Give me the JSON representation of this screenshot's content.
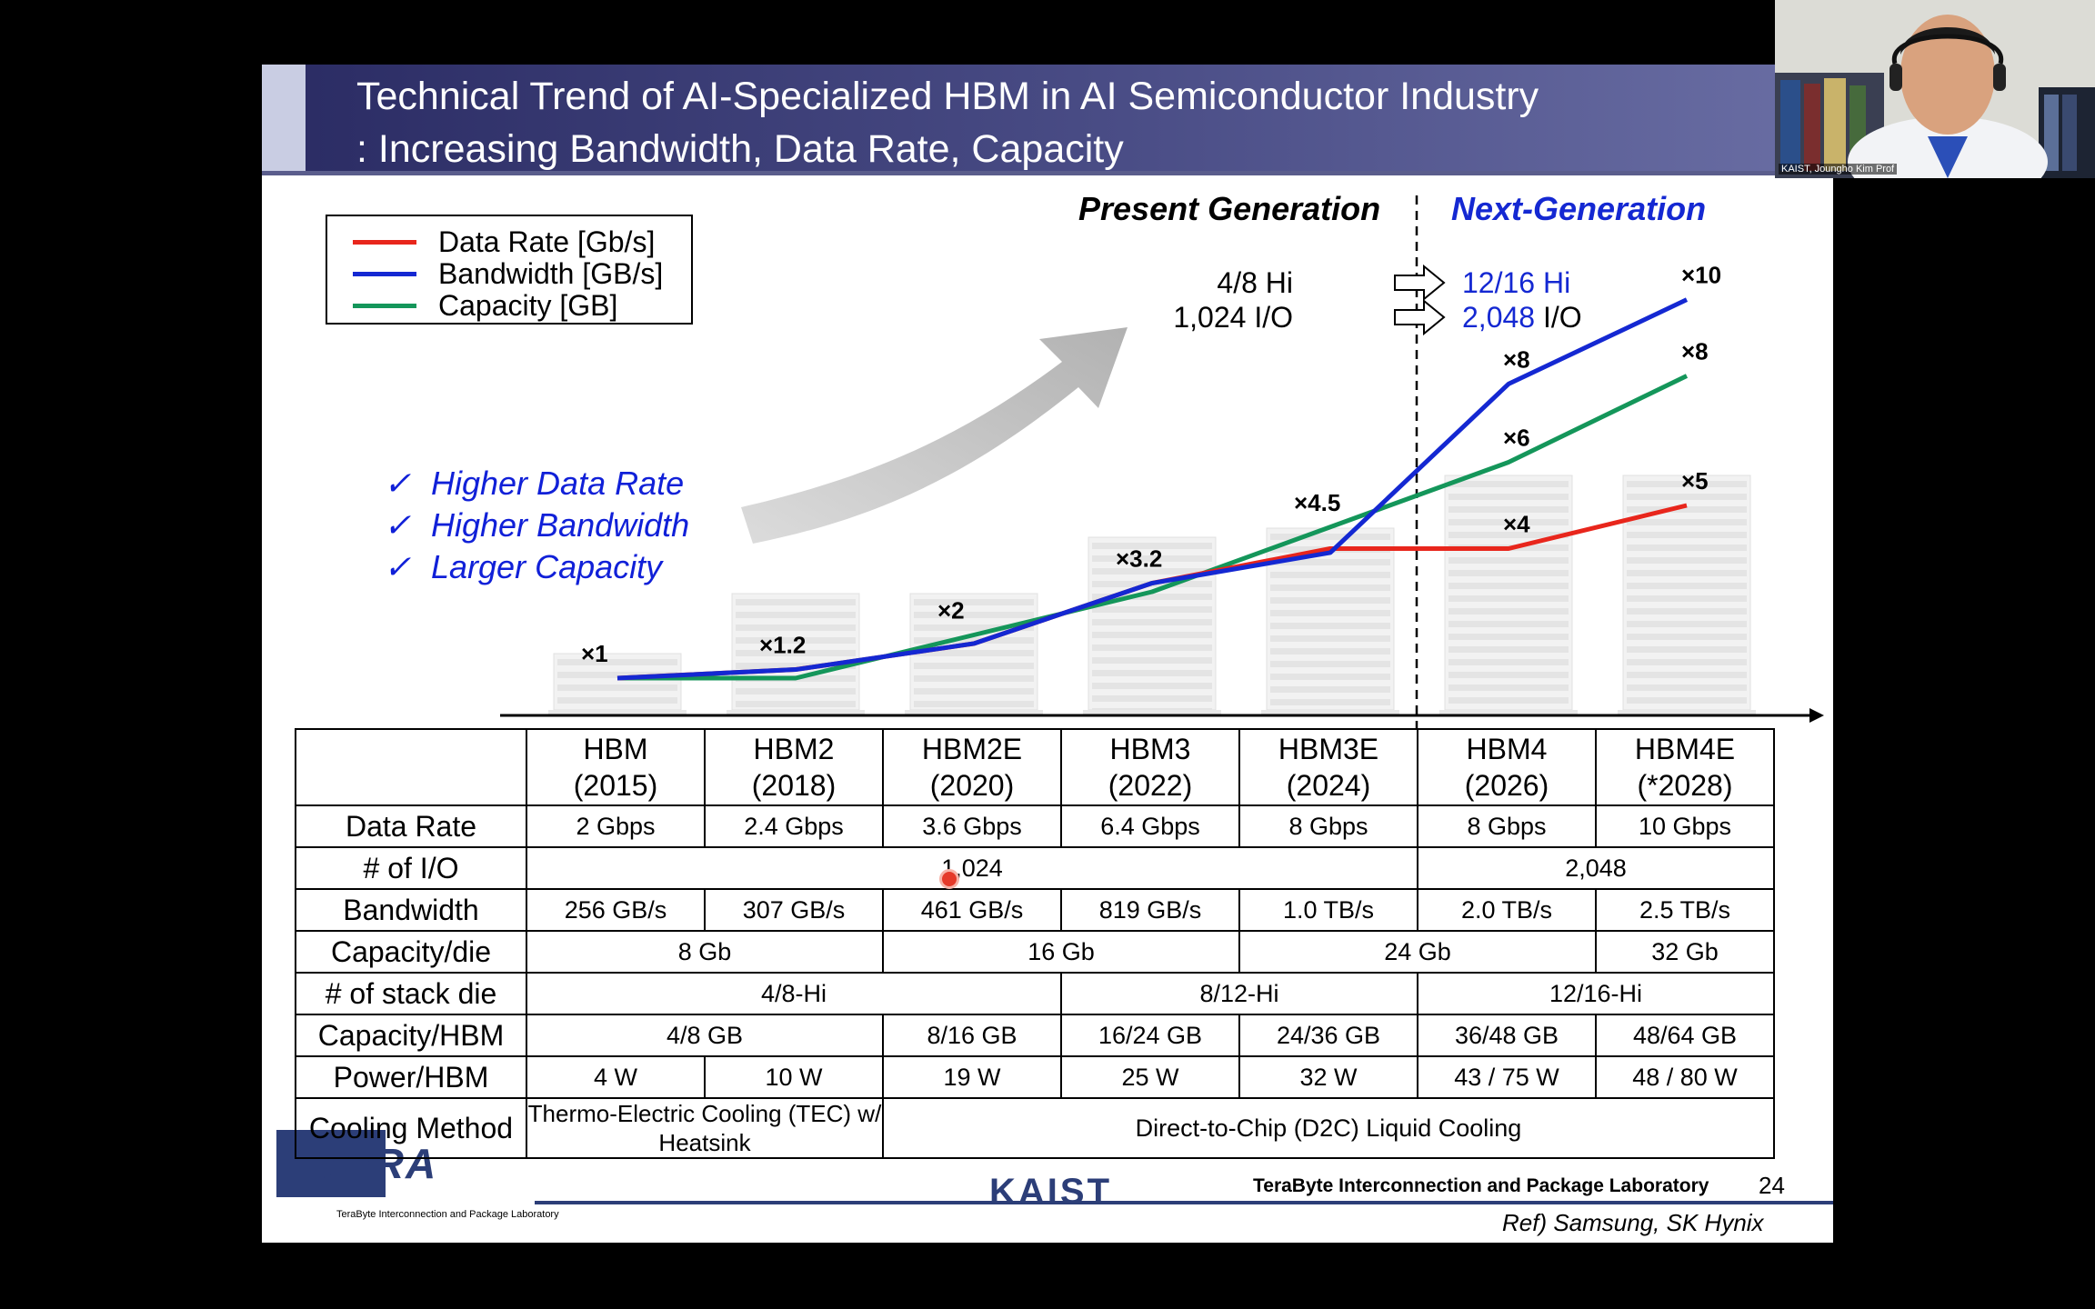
{
  "slide": {
    "title_line1": "Technical Trend of AI-Specialized HBM in AI Semiconductor Industry",
    "title_line2": ": Increasing Bandwidth, Data Rate, Capacity",
    "page_number": "24",
    "ref": "Ref) Samsung, SK Hynix",
    "lab_name": "TeraByte Interconnection and Package Laboratory",
    "logo_text": "TERA",
    "logo_subtext": "TeraByte Interconnection and Package Laboratory",
    "kaist_logo": "KAIST"
  },
  "legend": [
    {
      "label": "Data Rate [Gb/s]",
      "color": "#e8261c"
    },
    {
      "label": "Bandwidth [GB/s]",
      "color": "#1428d2"
    },
    {
      "label": "Capacity [GB]",
      "color": "#14965a"
    }
  ],
  "generations": {
    "present": "Present Generation",
    "next": "Next-Generation",
    "present_color": "#000000",
    "next_color": "#1428d2"
  },
  "transition": {
    "stack_from": "4/8 Hi",
    "stack_to": "12/16 Hi",
    "io_from": "1,024 I/O",
    "io_to_value": "2,048",
    "io_to_unit": "I/O"
  },
  "bullets": [
    "Higher Data Rate",
    "Higher Bandwidth",
    "Larger Capacity"
  ],
  "chart_data": {
    "type": "line",
    "categories": [
      "HBM",
      "HBM2",
      "HBM2E",
      "HBM3",
      "HBM3E",
      "HBM4",
      "HBM4E"
    ],
    "series": [
      {
        "name": "Data Rate [Gb/s]",
        "color": "#e8261c",
        "values": [
          2,
          2.4,
          3.6,
          6.4,
          8,
          8,
          10
        ]
      },
      {
        "name": "Bandwidth [GB/s]",
        "color": "#1428d2",
        "values": [
          256,
          307,
          461,
          819,
          1000,
          2000,
          2500
        ]
      },
      {
        "name": "Capacity [GB]",
        "color": "#14965a",
        "values": [
          8,
          8,
          16,
          24,
          36,
          48,
          64
        ]
      }
    ],
    "multiplier_labels": [
      {
        "label": "×1",
        "category": "HBM"
      },
      {
        "label": "×1.2",
        "category": "HBM2"
      },
      {
        "label": "×2",
        "category": "HBM2E"
      },
      {
        "label": "×3.2",
        "category": "HBM3"
      },
      {
        "label": "×4.5",
        "category": "HBM3E"
      },
      {
        "label": "×8",
        "category": "HBM4",
        "series": "Bandwidth [GB/s]"
      },
      {
        "label": "×6",
        "category": "HBM4",
        "series": "Capacity [GB]"
      },
      {
        "label": "×4",
        "category": "HBM4",
        "series": "Data Rate [Gb/s]"
      },
      {
        "label": "×10",
        "category": "HBM4E",
        "series": "Bandwidth [GB/s]"
      },
      {
        "label": "×8",
        "category": "HBM4E",
        "series": "Capacity [GB]"
      },
      {
        "label": "×5",
        "category": "HBM4E",
        "series": "Data Rate [Gb/s]"
      }
    ],
    "multiplier_scale": [
      1,
      1.2,
      2,
      3.2,
      4.5,
      8,
      10
    ],
    "divider_between": [
      "HBM3E",
      "HBM4"
    ],
    "grid": false
  },
  "table": {
    "columns": [
      {
        "name": "HBM",
        "year": "(2015)"
      },
      {
        "name": "HBM2",
        "year": "(2018)"
      },
      {
        "name": "HBM2E",
        "year": "(2020)"
      },
      {
        "name": "HBM3",
        "year": "(2022)"
      },
      {
        "name": "HBM3E",
        "year": "(2024)"
      },
      {
        "name": "HBM4",
        "year": "(2026)"
      },
      {
        "name": "HBM4E",
        "year": "(*2028)"
      }
    ],
    "rows": [
      {
        "header": "Data Rate",
        "cells": [
          {
            "text": "2 Gbps",
            "span": 1
          },
          {
            "text": "2.4 Gbps",
            "span": 1
          },
          {
            "text": "3.6 Gbps",
            "span": 1
          },
          {
            "text": "6.4 Gbps",
            "span": 1
          },
          {
            "text": "8 Gbps",
            "span": 1
          },
          {
            "text": "8 Gbps",
            "span": 1
          },
          {
            "text": "10 Gbps",
            "span": 1
          }
        ]
      },
      {
        "header": "# of I/O",
        "cells": [
          {
            "text": "1,024",
            "span": 5
          },
          {
            "text": "2,048",
            "span": 2
          }
        ]
      },
      {
        "header": "Bandwidth",
        "cells": [
          {
            "text": "256 GB/s",
            "span": 1
          },
          {
            "text": "307 GB/s",
            "span": 1
          },
          {
            "text": "461 GB/s",
            "span": 1
          },
          {
            "text": "819 GB/s",
            "span": 1
          },
          {
            "text": "1.0 TB/s",
            "span": 1
          },
          {
            "text": "2.0 TB/s",
            "span": 1
          },
          {
            "text": "2.5 TB/s",
            "span": 1
          }
        ]
      },
      {
        "header": "Capacity/die",
        "cells": [
          {
            "text": "8 Gb",
            "span": 2
          },
          {
            "text": "16 Gb",
            "span": 2
          },
          {
            "text": "24 Gb",
            "span": 2
          },
          {
            "text": "32 Gb",
            "span": 1
          }
        ]
      },
      {
        "header": "# of stack die",
        "cells": [
          {
            "text": "4/8-Hi",
            "span": 3
          },
          {
            "text": "8/12-Hi",
            "span": 2
          },
          {
            "text": "12/16-Hi",
            "span": 2
          }
        ]
      },
      {
        "header": "Capacity/HBM",
        "cells": [
          {
            "text": "4/8 GB",
            "span": 2
          },
          {
            "text": "8/16 GB",
            "span": 1
          },
          {
            "text": "16/24 GB",
            "span": 1
          },
          {
            "text": "24/36 GB",
            "span": 1
          },
          {
            "text": "36/48 GB",
            "span": 1
          },
          {
            "text": "48/64 GB",
            "span": 1
          }
        ]
      },
      {
        "header": "Power/HBM",
        "cells": [
          {
            "text": "4 W",
            "span": 1
          },
          {
            "text": "10 W",
            "span": 1
          },
          {
            "text": "19 W",
            "span": 1
          },
          {
            "text": "25 W",
            "span": 1
          },
          {
            "text": "32 W",
            "span": 1
          },
          {
            "text": "43 / 75 W",
            "span": 1
          },
          {
            "text": "48 / 80 W",
            "span": 1
          }
        ]
      },
      {
        "header": "Cooling Method",
        "cells": [
          {
            "text": "Thermo-Electric Cooling (TEC) w/ Heatsink",
            "span": 2,
            "small": true
          },
          {
            "text": "Direct-to-Chip (D2C) Liquid Cooling",
            "span": 5
          }
        ]
      }
    ]
  },
  "webcam": {
    "caption": "KAIST, Joungho Kim Prof",
    "icons": [
      "webcam-video",
      "person-avatar"
    ]
  },
  "cursor": {
    "icon": "pointer-dot",
    "color": "#e53a2a"
  }
}
